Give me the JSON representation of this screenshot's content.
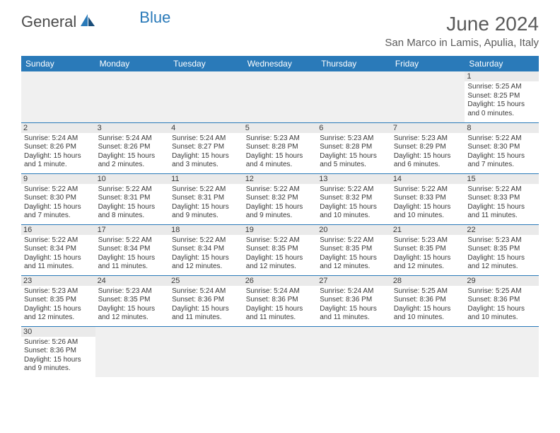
{
  "logo": {
    "part1": "General",
    "part2": "Blue",
    "icon_color1": "#2a7ab9",
    "icon_color2": "#1a4e7a"
  },
  "title": "June 2024",
  "location": "San Marco in Lamis, Apulia, Italy",
  "header_bg": "#2a7ab9",
  "header_fg": "#ffffff",
  "rule_color": "#2a7ab9",
  "daynum_bg": "#eaeaea",
  "page_bg": "#ffffff",
  "text_color": "#3a3a3a",
  "font_size_title": 28,
  "font_size_location": 15,
  "font_size_header": 12,
  "font_size_daynum": 11,
  "font_size_body": 10,
  "weekdays": [
    "Sunday",
    "Monday",
    "Tuesday",
    "Wednesday",
    "Thursday",
    "Friday",
    "Saturday"
  ],
  "weeks": [
    [
      null,
      null,
      null,
      null,
      null,
      null,
      {
        "n": "1",
        "sunrise": "5:25 AM",
        "sunset": "8:25 PM",
        "daylight": "15 hours and 0 minutes."
      }
    ],
    [
      {
        "n": "2",
        "sunrise": "5:24 AM",
        "sunset": "8:26 PM",
        "daylight": "15 hours and 1 minute."
      },
      {
        "n": "3",
        "sunrise": "5:24 AM",
        "sunset": "8:26 PM",
        "daylight": "15 hours and 2 minutes."
      },
      {
        "n": "4",
        "sunrise": "5:24 AM",
        "sunset": "8:27 PM",
        "daylight": "15 hours and 3 minutes."
      },
      {
        "n": "5",
        "sunrise": "5:23 AM",
        "sunset": "8:28 PM",
        "daylight": "15 hours and 4 minutes."
      },
      {
        "n": "6",
        "sunrise": "5:23 AM",
        "sunset": "8:28 PM",
        "daylight": "15 hours and 5 minutes."
      },
      {
        "n": "7",
        "sunrise": "5:23 AM",
        "sunset": "8:29 PM",
        "daylight": "15 hours and 6 minutes."
      },
      {
        "n": "8",
        "sunrise": "5:22 AM",
        "sunset": "8:30 PM",
        "daylight": "15 hours and 7 minutes."
      }
    ],
    [
      {
        "n": "9",
        "sunrise": "5:22 AM",
        "sunset": "8:30 PM",
        "daylight": "15 hours and 7 minutes."
      },
      {
        "n": "10",
        "sunrise": "5:22 AM",
        "sunset": "8:31 PM",
        "daylight": "15 hours and 8 minutes."
      },
      {
        "n": "11",
        "sunrise": "5:22 AM",
        "sunset": "8:31 PM",
        "daylight": "15 hours and 9 minutes."
      },
      {
        "n": "12",
        "sunrise": "5:22 AM",
        "sunset": "8:32 PM",
        "daylight": "15 hours and 9 minutes."
      },
      {
        "n": "13",
        "sunrise": "5:22 AM",
        "sunset": "8:32 PM",
        "daylight": "15 hours and 10 minutes."
      },
      {
        "n": "14",
        "sunrise": "5:22 AM",
        "sunset": "8:33 PM",
        "daylight": "15 hours and 10 minutes."
      },
      {
        "n": "15",
        "sunrise": "5:22 AM",
        "sunset": "8:33 PM",
        "daylight": "15 hours and 11 minutes."
      }
    ],
    [
      {
        "n": "16",
        "sunrise": "5:22 AM",
        "sunset": "8:34 PM",
        "daylight": "15 hours and 11 minutes."
      },
      {
        "n": "17",
        "sunrise": "5:22 AM",
        "sunset": "8:34 PM",
        "daylight": "15 hours and 11 minutes."
      },
      {
        "n": "18",
        "sunrise": "5:22 AM",
        "sunset": "8:34 PM",
        "daylight": "15 hours and 12 minutes."
      },
      {
        "n": "19",
        "sunrise": "5:22 AM",
        "sunset": "8:35 PM",
        "daylight": "15 hours and 12 minutes."
      },
      {
        "n": "20",
        "sunrise": "5:22 AM",
        "sunset": "8:35 PM",
        "daylight": "15 hours and 12 minutes."
      },
      {
        "n": "21",
        "sunrise": "5:23 AM",
        "sunset": "8:35 PM",
        "daylight": "15 hours and 12 minutes."
      },
      {
        "n": "22",
        "sunrise": "5:23 AM",
        "sunset": "8:35 PM",
        "daylight": "15 hours and 12 minutes."
      }
    ],
    [
      {
        "n": "23",
        "sunrise": "5:23 AM",
        "sunset": "8:35 PM",
        "daylight": "15 hours and 12 minutes."
      },
      {
        "n": "24",
        "sunrise": "5:23 AM",
        "sunset": "8:35 PM",
        "daylight": "15 hours and 12 minutes."
      },
      {
        "n": "25",
        "sunrise": "5:24 AM",
        "sunset": "8:36 PM",
        "daylight": "15 hours and 11 minutes."
      },
      {
        "n": "26",
        "sunrise": "5:24 AM",
        "sunset": "8:36 PM",
        "daylight": "15 hours and 11 minutes."
      },
      {
        "n": "27",
        "sunrise": "5:24 AM",
        "sunset": "8:36 PM",
        "daylight": "15 hours and 11 minutes."
      },
      {
        "n": "28",
        "sunrise": "5:25 AM",
        "sunset": "8:36 PM",
        "daylight": "15 hours and 10 minutes."
      },
      {
        "n": "29",
        "sunrise": "5:25 AM",
        "sunset": "8:36 PM",
        "daylight": "15 hours and 10 minutes."
      }
    ],
    [
      {
        "n": "30",
        "sunrise": "5:26 AM",
        "sunset": "8:36 PM",
        "daylight": "15 hours and 9 minutes."
      },
      null,
      null,
      null,
      null,
      null,
      null
    ]
  ],
  "labels": {
    "sunrise": "Sunrise:",
    "sunset": "Sunset:",
    "daylight": "Daylight:"
  }
}
